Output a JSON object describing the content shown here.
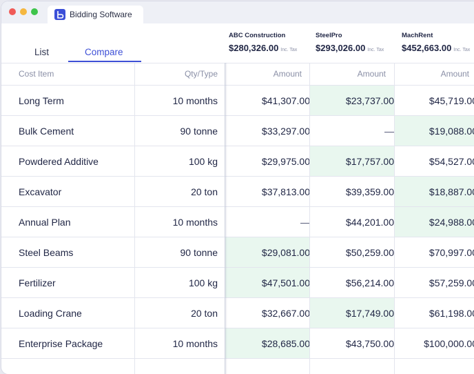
{
  "window": {
    "tab_title": "Bidding Software",
    "tab_icon": "b-logo-icon"
  },
  "view_tabs": {
    "list": "List",
    "compare": "Compare",
    "active": "Compare"
  },
  "vendors": [
    {
      "name": "ABC Construction",
      "total": "$280,326.00",
      "tax_label": "Inc. Tax"
    },
    {
      "name": "SteelPro",
      "total": "$293,026.00",
      "tax_label": "Inc. Tax"
    },
    {
      "name": "MachRent",
      "total": "$452,663.00",
      "tax_label": "Inc. Tax"
    }
  ],
  "table": {
    "headers": {
      "item": "Cost Item",
      "qty": "Qty/Type",
      "amount1": "Amount",
      "amount2": "Amount",
      "amount3": "Amount"
    },
    "highlight_color": "#e9f7ef",
    "rows": [
      {
        "item": "Long Term",
        "qty": "10 months",
        "a1": "$41,307.00",
        "a2": "$23,737.00",
        "a3": "$45,719.00",
        "best": 2
      },
      {
        "item": "Bulk Cement",
        "qty": "90 tonne",
        "a1": "$33,297.00",
        "a2": "—",
        "a3": "$19,088.00",
        "best": 3
      },
      {
        "item": "Powdered Additive",
        "qty": "100 kg",
        "a1": "$29,975.00",
        "a2": "$17,757.00",
        "a3": "$54,527.00",
        "best": 2
      },
      {
        "item": "Excavator",
        "qty": "20 ton",
        "a1": "$37,813.00",
        "a2": "$39,359.00",
        "a3": "$18,887.00",
        "best": 3
      },
      {
        "item": "Annual Plan",
        "qty": "10 months",
        "a1": "—",
        "a2": "$44,201.00",
        "a3": "$24,988.00",
        "best": 3
      },
      {
        "item": "Steel Beams",
        "qty": "90 tonne",
        "a1": "$29,081.00",
        "a2": "$50,259.00",
        "a3": "$70,997.00",
        "best": 1
      },
      {
        "item": "Fertilizer",
        "qty": "100 kg",
        "a1": "$47,501.00",
        "a2": "$56,214.00",
        "a3": "$57,259.00",
        "best": 1
      },
      {
        "item": "Loading Crane",
        "qty": "20 ton",
        "a1": "$32,667.00",
        "a2": "$17,749.00",
        "a3": "$61,198.00",
        "best": 2
      },
      {
        "item": "Enterprise Package",
        "qty": "10 months",
        "a1": "$28,685.00",
        "a2": "$43,750.00",
        "a3": "$100,000.00",
        "best": 1
      }
    ]
  }
}
